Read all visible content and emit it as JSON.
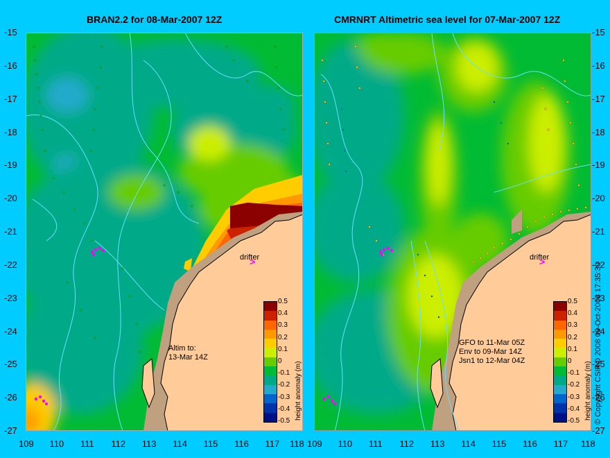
{
  "left_title": "BRAN2.2 for 08-Mar-2007 12Z",
  "right_title": "CMRNRT Altimetric sea level  for 07-Mar-2007 12Z",
  "lat_labels": [
    "-15",
    "-16",
    "-17",
    "-18",
    "-19",
    "-20",
    "-21",
    "-22",
    "-23",
    "-24",
    "-25",
    "-26",
    "-27"
  ],
  "lon_labels": [
    "109",
    "110",
    "111",
    "112",
    "113",
    "114",
    "115",
    "116",
    "117",
    "118"
  ],
  "drifter_label": "drifter",
  "drifter_symbol": ">",
  "left_note": [
    "Altim to:",
    "13-Mar 14Z"
  ],
  "right_note": [
    "GFO to 11-Mar 05Z",
    "Env to 09-Mar 14Z",
    "Jsn1 to 12-Mar 04Z"
  ],
  "colorbar": {
    "labels": [
      "0.5",
      "0.4",
      "0.3",
      "0.2",
      "0.1",
      "0",
      "-0.1",
      "-0.2",
      "-0.3",
      "-0.4",
      "-0.5"
    ],
    "title": "height anomaly (m)",
    "colors": [
      "#8b0000",
      "#cc2200",
      "#ff6600",
      "#ff9900",
      "#ffcc00",
      "#ccee00",
      "#66cc00",
      "#00bb33",
      "#00aa88",
      "#22aacc",
      "#0066cc",
      "#0033aa",
      "#001188"
    ]
  },
  "copyright": "© Copyright CSIRO 2008   09-Oct-2008 17:35:30",
  "colors": {
    "background": "#00ccff",
    "land": "#ffcc99",
    "shelf": "#bfa07f",
    "contour": "#66e0ff",
    "drifter": "#ff00ff"
  }
}
